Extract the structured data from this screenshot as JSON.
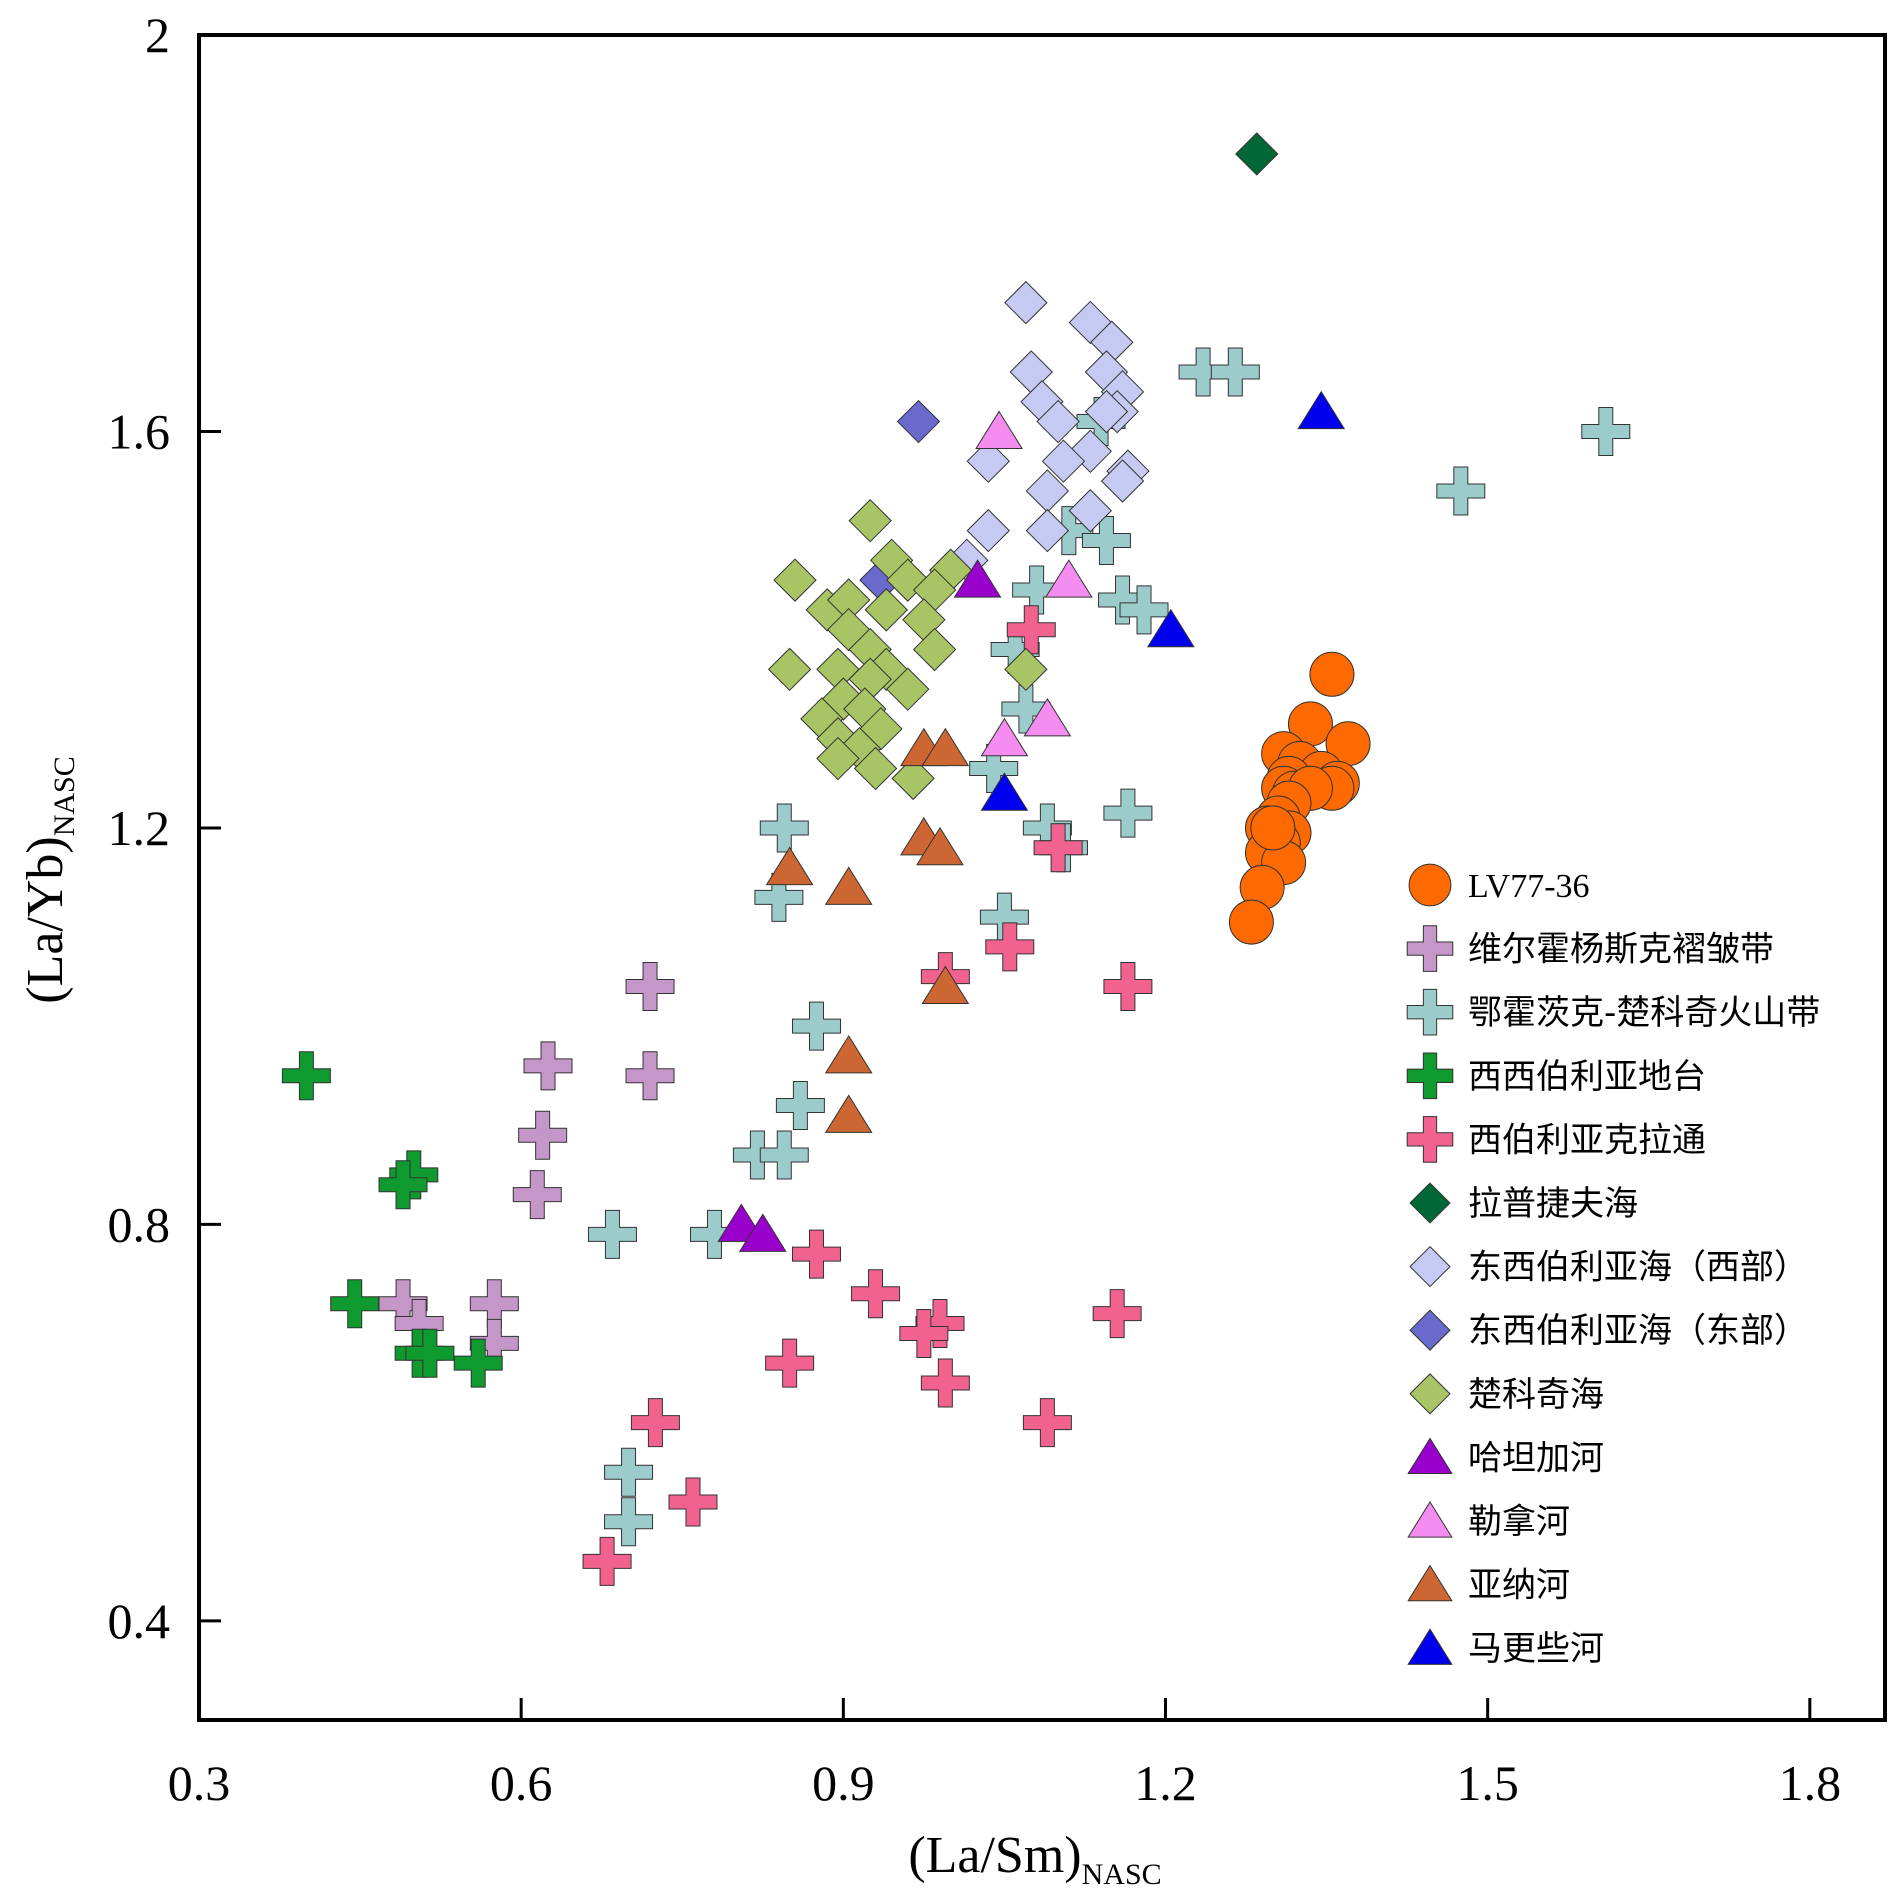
{
  "chart_data": {
    "type": "scatter",
    "xlabel": "(La/Sm)",
    "xlabel_sub": "NASC",
    "ylabel": "(La/Yb)",
    "ylabel_sub": "NASC",
    "xlim": [
      0.3,
      1.87
    ],
    "ylim": [
      0.3,
      2.0
    ],
    "xticks": [
      0.3,
      0.6,
      0.9,
      1.2,
      1.5,
      1.8
    ],
    "xtick_labels": [
      "0.3",
      "0.6",
      "0.9",
      "1.2",
      "1.5",
      "1.8"
    ],
    "yticks": [
      0.4,
      0.8,
      1.2,
      1.6,
      2.0
    ],
    "ytick_labels": [
      "0.4",
      "0.8",
      "1.2",
      "1.6",
      "2"
    ],
    "grid": false,
    "legend_position": "bottom-right",
    "series": [
      {
        "name": "LV77-36",
        "marker": "circle",
        "color": "#ff6a00",
        "points": [
          [
            1.355,
            1.355
          ],
          [
            1.335,
            1.305
          ],
          [
            1.37,
            1.285
          ],
          [
            1.31,
            1.275
          ],
          [
            1.325,
            1.265
          ],
          [
            1.345,
            1.255
          ],
          [
            1.315,
            1.25
          ],
          [
            1.36,
            1.245
          ],
          [
            1.31,
            1.24
          ],
          [
            1.32,
            1.235
          ],
          [
            1.355,
            1.24
          ],
          [
            1.335,
            1.24
          ],
          [
            1.315,
            1.225
          ],
          [
            1.305,
            1.21
          ],
          [
            1.295,
            1.2
          ],
          [
            1.315,
            1.195
          ],
          [
            1.305,
            1.185
          ],
          [
            1.295,
            1.175
          ],
          [
            1.31,
            1.165
          ],
          [
            1.29,
            1.14
          ],
          [
            1.28,
            1.105
          ],
          [
            1.3,
            1.2
          ]
        ]
      },
      {
        "name": "维尔霍杨斯克褶皱带",
        "marker": "plus",
        "color": "#c497c8",
        "points": [
          [
            0.72,
            1.04
          ],
          [
            0.625,
            0.96
          ],
          [
            0.72,
            0.95
          ],
          [
            0.62,
            0.89
          ],
          [
            0.615,
            0.83
          ],
          [
            0.49,
            0.72
          ],
          [
            0.575,
            0.72
          ],
          [
            0.505,
            0.7
          ],
          [
            0.575,
            0.68
          ]
        ]
      },
      {
        "name": "鄂霍茨克-楚科奇火山带",
        "marker": "plus",
        "color": "#9ccbcb",
        "points": [
          [
            1.235,
            1.66
          ],
          [
            1.265,
            1.66
          ],
          [
            1.61,
            1.6
          ],
          [
            1.475,
            1.54
          ],
          [
            1.14,
            1.61
          ],
          [
            1.11,
            1.5
          ],
          [
            1.145,
            1.49
          ],
          [
            1.08,
            1.44
          ],
          [
            1.16,
            1.43
          ],
          [
            1.18,
            1.42
          ],
          [
            1.06,
            1.38
          ],
          [
            1.07,
            1.32
          ],
          [
            1.04,
            1.26
          ],
          [
            1.09,
            1.2
          ],
          [
            1.105,
            1.18
          ],
          [
            1.165,
            1.215
          ],
          [
            0.845,
            1.2
          ],
          [
            0.84,
            1.13
          ],
          [
            1.05,
            1.11
          ],
          [
            0.875,
            1.0
          ],
          [
            0.86,
            0.92
          ],
          [
            0.82,
            0.87
          ],
          [
            0.845,
            0.87
          ],
          [
            0.685,
            0.79
          ],
          [
            0.78,
            0.79
          ],
          [
            0.7,
            0.55
          ],
          [
            0.7,
            0.5
          ]
        ]
      },
      {
        "name": "西西伯利亚地台",
        "marker": "plus",
        "color": "#0e9a2e",
        "points": [
          [
            0.4,
            0.95
          ],
          [
            0.5,
            0.85
          ],
          [
            0.49,
            0.84
          ],
          [
            0.445,
            0.72
          ],
          [
            0.505,
            0.67
          ],
          [
            0.515,
            0.67
          ],
          [
            0.56,
            0.66
          ]
        ]
      },
      {
        "name": "西伯利亚克拉通",
        "marker": "plus",
        "color": "#f2628f",
        "points": [
          [
            1.075,
            1.4
          ],
          [
            1.1,
            1.18
          ],
          [
            1.055,
            1.08
          ],
          [
            0.995,
            1.05
          ],
          [
            1.165,
            1.04
          ],
          [
            0.875,
            0.77
          ],
          [
            0.93,
            0.73
          ],
          [
            0.99,
            0.7
          ],
          [
            0.975,
            0.69
          ],
          [
            1.155,
            0.71
          ],
          [
            0.85,
            0.66
          ],
          [
            0.995,
            0.64
          ],
          [
            0.725,
            0.6
          ],
          [
            1.09,
            0.6
          ],
          [
            0.76,
            0.52
          ],
          [
            0.68,
            0.46
          ]
        ]
      },
      {
        "name": "拉普捷夫海",
        "marker": "diamond",
        "color": "#006837",
        "points": [
          [
            1.285,
            1.88
          ]
        ]
      },
      {
        "name": "东西伯利亚海（西部）",
        "marker": "diamond",
        "color": "#c6caf3",
        "points": [
          [
            1.07,
            1.73
          ],
          [
            1.13,
            1.71
          ],
          [
            1.15,
            1.69
          ],
          [
            1.075,
            1.66
          ],
          [
            1.145,
            1.66
          ],
          [
            1.16,
            1.64
          ],
          [
            1.085,
            1.63
          ],
          [
            1.155,
            1.62
          ],
          [
            1.1,
            1.61
          ],
          [
            1.145,
            1.62
          ],
          [
            1.13,
            1.58
          ],
          [
            1.105,
            1.57
          ],
          [
            1.035,
            1.57
          ],
          [
            1.165,
            1.56
          ],
          [
            1.16,
            1.55
          ],
          [
            1.09,
            1.54
          ],
          [
            1.13,
            1.52
          ],
          [
            1.035,
            1.5
          ],
          [
            1.09,
            1.5
          ],
          [
            1.015,
            1.47
          ]
        ]
      },
      {
        "name": "东西伯利亚海（东部）",
        "marker": "diamond",
        "color": "#6a6acd",
        "points": [
          [
            0.97,
            1.61
          ],
          [
            0.935,
            1.45
          ]
        ]
      },
      {
        "name": "楚科奇海",
        "marker": "diamond",
        "color": "#a8c464",
        "points": [
          [
            0.925,
            1.51
          ],
          [
            0.945,
            1.47
          ],
          [
            0.855,
            1.45
          ],
          [
            0.96,
            1.45
          ],
          [
            1.0,
            1.46
          ],
          [
            0.985,
            1.44
          ],
          [
            0.885,
            1.42
          ],
          [
            0.905,
            1.43
          ],
          [
            0.94,
            1.42
          ],
          [
            0.975,
            1.41
          ],
          [
            0.905,
            1.4
          ],
          [
            0.925,
            1.38
          ],
          [
            0.985,
            1.38
          ],
          [
            0.94,
            1.36
          ],
          [
            0.85,
            1.36
          ],
          [
            0.895,
            1.36
          ],
          [
            0.925,
            1.35
          ],
          [
            1.07,
            1.36
          ],
          [
            0.96,
            1.34
          ],
          [
            0.9,
            1.33
          ],
          [
            0.92,
            1.32
          ],
          [
            0.88,
            1.31
          ],
          [
            0.935,
            1.3
          ],
          [
            0.895,
            1.29
          ],
          [
            0.915,
            1.28
          ],
          [
            0.895,
            1.27
          ],
          [
            0.93,
            1.26
          ],
          [
            0.965,
            1.25
          ]
        ]
      },
      {
        "name": "哈坦加河",
        "marker": "triangle",
        "color": "#9900cc",
        "points": [
          [
            1.025,
            1.45
          ],
          [
            0.805,
            0.8
          ],
          [
            0.825,
            0.79
          ]
        ]
      },
      {
        "name": "勒拿河",
        "marker": "triangle",
        "color": "#f58cf0",
        "points": [
          [
            1.045,
            1.6
          ],
          [
            1.11,
            1.45
          ],
          [
            1.09,
            1.31
          ],
          [
            1.05,
            1.29
          ]
        ]
      },
      {
        "name": "亚纳河",
        "marker": "triangle",
        "color": "#cc6633",
        "points": [
          [
            0.975,
            1.28
          ],
          [
            0.995,
            1.28
          ],
          [
            0.975,
            1.19
          ],
          [
            0.99,
            1.18
          ],
          [
            0.85,
            1.16
          ],
          [
            0.905,
            1.14
          ],
          [
            0.995,
            1.04
          ],
          [
            0.905,
            0.97
          ],
          [
            0.905,
            0.91
          ]
        ]
      },
      {
        "name": "马更些河",
        "marker": "triangle",
        "color": "#0000ee",
        "points": [
          [
            1.345,
            1.62
          ],
          [
            1.205,
            1.4
          ],
          [
            1.05,
            1.235
          ]
        ]
      }
    ]
  }
}
